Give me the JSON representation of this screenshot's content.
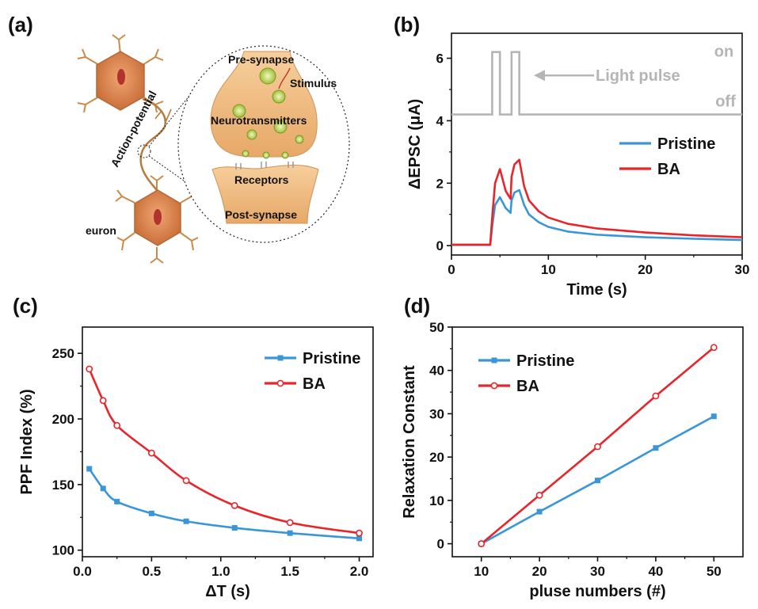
{
  "panel_labels": {
    "a": "(a)",
    "b": "(b)",
    "c": "(c)",
    "d": "(d)"
  },
  "colors": {
    "pristine": "#3a96d6",
    "ba": "#e8252b",
    "pulse": "#b5b5b5",
    "neuron": "#d8834a",
    "synapse": "#f2c48f"
  },
  "diagram": {
    "pre_synapse": "Pre-synapse",
    "stimulus": "Stimulus",
    "neurotransmitters": "Neurotransmitters",
    "receptors": "Receptors",
    "post_synapse": "Post-synapse",
    "action_potential": "Action-potential",
    "neuron": "euron"
  },
  "chart_data": [
    {
      "panel": "(b)",
      "type": "line",
      "xlabel": "Time (s)",
      "ylabel": "ΔEPSC (μA)",
      "xlim": [
        0,
        30
      ],
      "ylim": [
        -0.3,
        6.8
      ],
      "xticks": [
        0,
        10,
        20,
        30
      ],
      "yticks": [
        0,
        2,
        4,
        6
      ],
      "xtick_labels": [
        "0",
        "10",
        "20",
        "30"
      ],
      "ytick_labels": [
        "0",
        "2",
        "4",
        "6"
      ],
      "legend": [
        "Pristine",
        "BA"
      ],
      "legend_position": "right",
      "pulse_annotation": {
        "label": "Light pulse",
        "on": "on",
        "off": "off",
        "low_level": 4.2,
        "high_level": 6.2,
        "pulses": [
          [
            4.2,
            5.0
          ],
          [
            6.2,
            7.0
          ]
        ]
      },
      "series": [
        {
          "name": "Pristine",
          "x": [
            0,
            4.0,
            4.2,
            4.5,
            5.0,
            5.6,
            6.1,
            6.2,
            6.5,
            7.0,
            7.5,
            8,
            9,
            10,
            12,
            15,
            20,
            25,
            30
          ],
          "y": [
            0.02,
            0.02,
            0.6,
            1.3,
            1.55,
            1.2,
            1.05,
            1.45,
            1.7,
            1.78,
            1.3,
            1.0,
            0.75,
            0.6,
            0.45,
            0.35,
            0.27,
            0.22,
            0.18
          ]
        },
        {
          "name": "BA",
          "x": [
            0,
            4.0,
            4.2,
            4.5,
            5.0,
            5.6,
            6.1,
            6.2,
            6.5,
            7.0,
            7.5,
            8,
            9,
            10,
            12,
            15,
            20,
            25,
            30
          ],
          "y": [
            0.03,
            0.03,
            0.9,
            2.0,
            2.45,
            1.75,
            1.5,
            2.2,
            2.6,
            2.75,
            1.9,
            1.45,
            1.1,
            0.9,
            0.7,
            0.55,
            0.42,
            0.33,
            0.27
          ]
        }
      ]
    },
    {
      "panel": "(c)",
      "type": "line",
      "xlabel": "ΔT (s)",
      "ylabel": "PPF Index (%)",
      "xlim": [
        0,
        2.1
      ],
      "ylim": [
        95,
        270
      ],
      "xticks": [
        0,
        0.5,
        1.0,
        1.5,
        2.0
      ],
      "yticks": [
        100,
        150,
        200,
        250
      ],
      "xtick_labels": [
        "0.0",
        "0.5",
        "1.0",
        "1.5",
        "2.0"
      ],
      "ytick_labels": [
        "100",
        "150",
        "200",
        "250"
      ],
      "legend": [
        "Pristine",
        "BA"
      ],
      "legend_position": "top-right",
      "series": [
        {
          "name": "Pristine",
          "marker": "square",
          "x": [
            0.05,
            0.15,
            0.25,
            0.5,
            0.75,
            1.1,
            1.5,
            2.0
          ],
          "y": [
            162,
            147,
            137,
            128,
            122,
            117,
            113,
            109
          ]
        },
        {
          "name": "BA",
          "marker": "circle",
          "x": [
            0.05,
            0.15,
            0.25,
            0.5,
            0.75,
            1.1,
            1.5,
            2.0
          ],
          "y": [
            238,
            214,
            195,
            174,
            153,
            134,
            121,
            113
          ]
        }
      ]
    },
    {
      "panel": "(d)",
      "type": "line",
      "xlabel": "pluse numbers (#)",
      "ylabel": "Relaxation Constant",
      "xlim": [
        5,
        55
      ],
      "ylim": [
        -3,
        50
      ],
      "xticks": [
        10,
        20,
        30,
        40,
        50
      ],
      "yticks": [
        0,
        10,
        20,
        30,
        40,
        50
      ],
      "xtick_labels": [
        "10",
        "20",
        "30",
        "40",
        "50"
      ],
      "ytick_labels": [
        "0",
        "10",
        "20",
        "30",
        "40",
        "50"
      ],
      "legend": [
        "Pristine",
        "BA"
      ],
      "legend_position": "top-left",
      "series": [
        {
          "name": "Pristine",
          "marker": "square",
          "x": [
            10,
            20,
            30,
            40,
            50
          ],
          "y": [
            0,
            7.4,
            14.6,
            22.1,
            29.4
          ]
        },
        {
          "name": "BA",
          "marker": "circle",
          "x": [
            10,
            20,
            30,
            40,
            50
          ],
          "y": [
            0,
            11.2,
            22.4,
            34.1,
            45.3
          ]
        }
      ]
    }
  ]
}
